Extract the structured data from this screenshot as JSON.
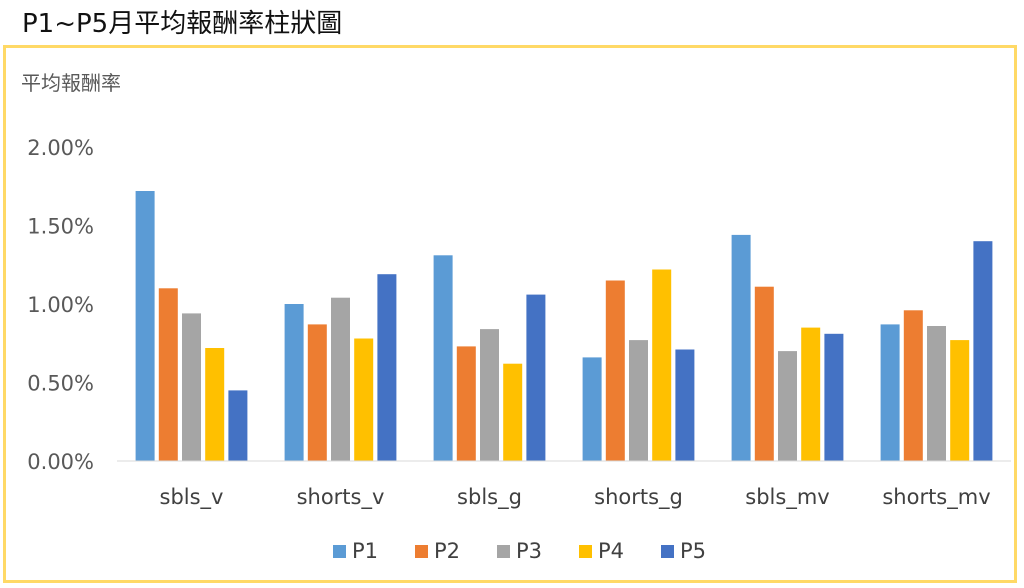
{
  "page_title": "P1~P5月平均報酬率柱狀圖",
  "chart_data": {
    "type": "bar",
    "title": "",
    "ylabel": "平均報酬率",
    "xlabel": "",
    "categories": [
      "sbls_v",
      "shorts_v",
      "sbls_g",
      "shorts_g",
      "sbls_mv",
      "shorts_mv"
    ],
    "series": [
      {
        "name": "P1",
        "color": "#5b9bd5",
        "values": [
          1.72,
          1.0,
          1.31,
          0.66,
          1.44,
          0.87
        ]
      },
      {
        "name": "P2",
        "color": "#ed7d31",
        "values": [
          1.1,
          0.87,
          0.73,
          1.15,
          1.11,
          0.96
        ]
      },
      {
        "name": "P3",
        "color": "#a5a5a5",
        "values": [
          0.94,
          1.04,
          0.84,
          0.77,
          0.7,
          0.86
        ]
      },
      {
        "name": "P4",
        "color": "#ffc000",
        "values": [
          0.72,
          0.78,
          0.62,
          1.22,
          0.85,
          0.77
        ]
      },
      {
        "name": "P5",
        "color": "#4472c4",
        "values": [
          0.45,
          1.19,
          1.06,
          0.71,
          0.81,
          1.4
        ]
      }
    ],
    "yticks": [
      "0.00%",
      "0.50%",
      "1.00%",
      "1.50%",
      "2.00%"
    ],
    "ytick_values": [
      0,
      0.5,
      1.0,
      1.5,
      2.0
    ],
    "ylim": [
      0,
      2.0
    ],
    "grid": false,
    "legend": "bottom",
    "border_color": "#ffd966"
  }
}
